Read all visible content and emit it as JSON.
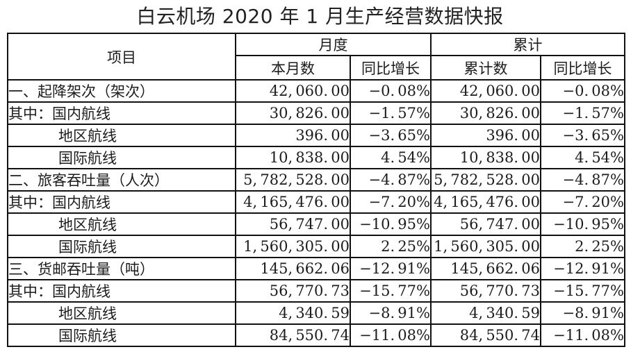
{
  "title": "白云机场 2020 年 1 月生产经营数据快报",
  "table": {
    "header": {
      "item": "项目",
      "monthly": "月度",
      "cumulative": "累计",
      "monthly_value": "本月数",
      "monthly_yoy": "同比增长",
      "cumulative_value": "累计数",
      "cumulative_yoy": "同比增长"
    },
    "rows": [
      {
        "item": "一、起降架次（架次）",
        "monthly_value": "42,060.00",
        "monthly_yoy": "−0.08%",
        "cumulative_value": "42,060.00",
        "cumulative_yoy": "−0.08%"
      },
      {
        "item": "其中：国内航线",
        "monthly_value": "30,826.00",
        "monthly_yoy": "−1.57%",
        "cumulative_value": "30,826.00",
        "cumulative_yoy": "−1.57%"
      },
      {
        "item": "地区航线",
        "monthly_value": "396.00",
        "monthly_yoy": "−3.65%",
        "cumulative_value": "396.00",
        "cumulative_yoy": "−3.65%"
      },
      {
        "item": "国际航线",
        "monthly_value": "10,838.00",
        "monthly_yoy": "4.54%",
        "cumulative_value": "10,838.00",
        "cumulative_yoy": "4.54%"
      },
      {
        "item": "二、旅客吞吐量（人次）",
        "monthly_value": "5,782,528.00",
        "monthly_yoy": "−4.87%",
        "cumulative_value": "5,782,528.00",
        "cumulative_yoy": "−4.87%"
      },
      {
        "item": "其中：国内航线",
        "monthly_value": "4,165,476.00",
        "monthly_yoy": "−7.20%",
        "cumulative_value": "4,165,476.00",
        "cumulative_yoy": "−7.20%"
      },
      {
        "item": "地区航线",
        "monthly_value": "56,747.00",
        "monthly_yoy": "−10.95%",
        "cumulative_value": "56,747.00",
        "cumulative_yoy": "−10.95%"
      },
      {
        "item": "国际航线",
        "monthly_value": "1,560,305.00",
        "monthly_yoy": "2.25%",
        "cumulative_value": "1,560,305.00",
        "cumulative_yoy": "2.25%"
      },
      {
        "item": "三、货邮吞吐量（吨）",
        "monthly_value": "145,662.06",
        "monthly_yoy": "−12.91%",
        "cumulative_value": "145,662.06",
        "cumulative_yoy": "−12.91%"
      },
      {
        "item": "其中：国内航线",
        "monthly_value": "56,770.73",
        "monthly_yoy": "−15.77%",
        "cumulative_value": "56,770.73",
        "cumulative_yoy": "−15.77%"
      },
      {
        "item": "地区航线",
        "monthly_value": "4,340.59",
        "monthly_yoy": "−8.91%",
        "cumulative_value": "4,340.59",
        "cumulative_yoy": "−8.91%"
      },
      {
        "item": "国际航线",
        "monthly_value": "84,550.74",
        "monthly_yoy": "−11.08%",
        "cumulative_value": "84,550.74",
        "cumulative_yoy": "−11.08%"
      }
    ]
  }
}
